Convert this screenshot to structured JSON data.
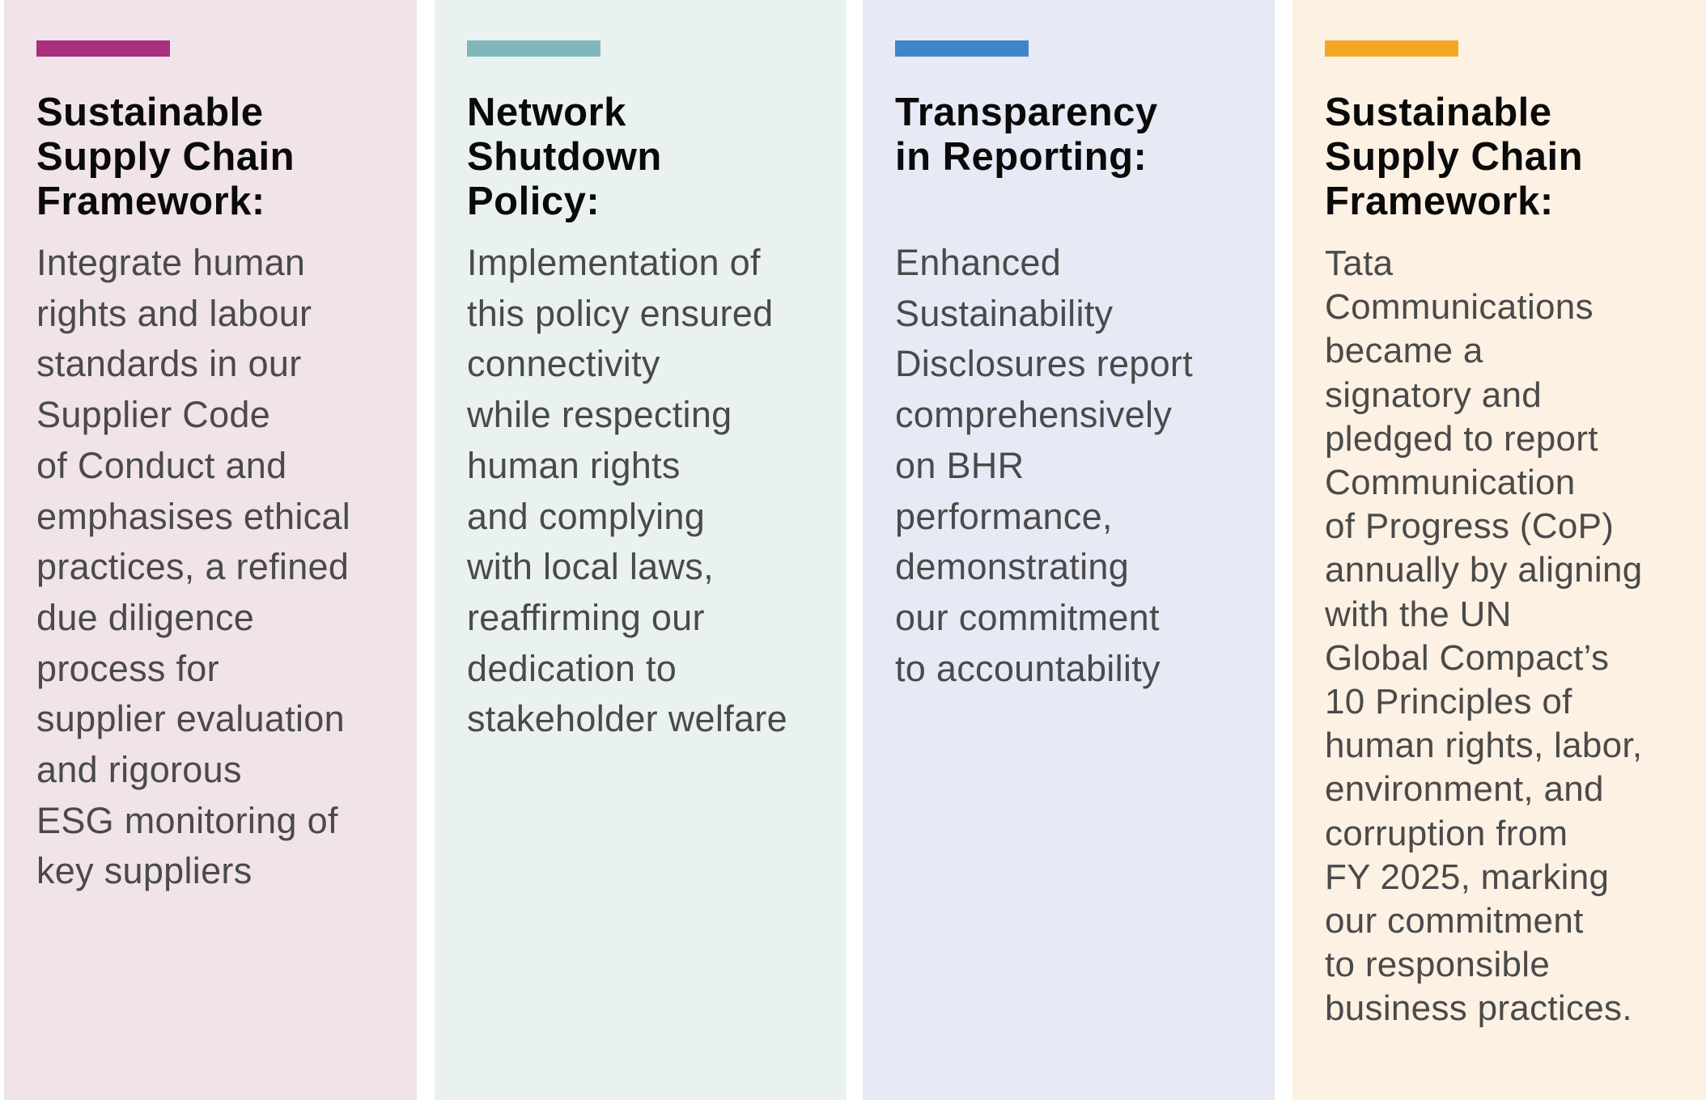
{
  "colors": {
    "accent_magenta": "#a8307f",
    "accent_teal": "#7fb7bb",
    "accent_blue": "#3e86c9",
    "accent_orange": "#f5a623"
  },
  "cards": [
    {
      "title": "Sustainable\nSupply Chain\nFramework:",
      "body": "Integrate human\nrights and labour\nstandards in our\nSupplier Code\nof Conduct and\nemphasises ethical\npractices, a refined\ndue diligence\nprocess for\nsupplier evaluation\nand rigorous\nESG monitoring of\nkey suppliers"
    },
    {
      "title": "Network\nShutdown\nPolicy:",
      "body": "Implementation of\nthis policy ensured\nconnectivity\nwhile respecting\nhuman rights\nand complying\nwith local laws,\nreaffirming our\ndedication to\nstakeholder welfare"
    },
    {
      "title": "Transparency\nin Reporting:",
      "body": "Enhanced\nSustainability\nDisclosures report\ncomprehensively\non BHR\nperformance,\ndemonstrating\nour commitment\nto accountability"
    },
    {
      "title": "Sustainable\nSupply Chain\nFramework:",
      "body": "Tata\nCommunications\nbecame a\nsignatory and\npledged to report\nCommunication\nof Progress (CoP)\nannually by aligning\nwith the UN\nGlobal Compact’s\n10 Principles of\nhuman rights, labor,\nenvironment, and\ncorruption from\nFY 2025, marking\nour commitment\nto responsible\nbusiness practices."
    }
  ]
}
